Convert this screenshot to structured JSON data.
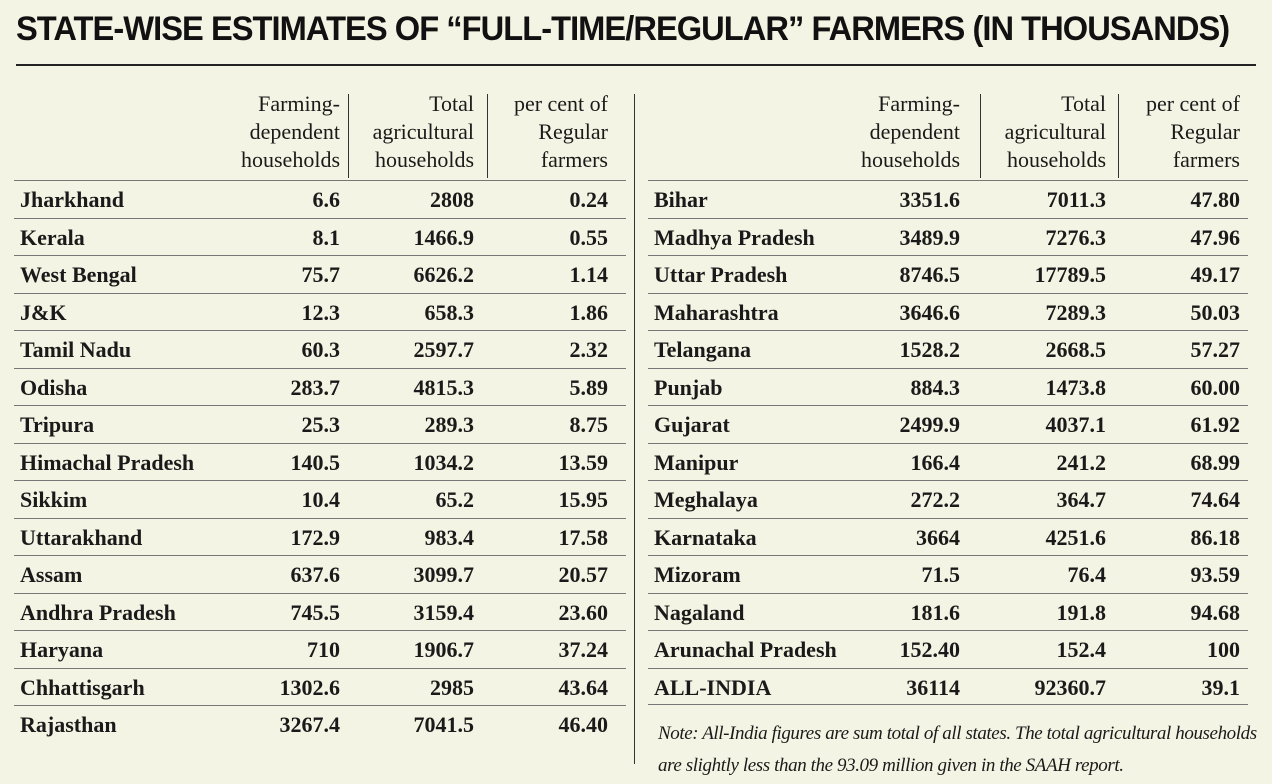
{
  "title": "STATE-WISE ESTIMATES OF “FULL-TIME/REGULAR” FARMERS (IN THOUSANDS)",
  "columns": [
    "Farming-\ndependent\nhouseholds",
    "Total\nagricultural\nhouseholds",
    "per cent of\nRegular\nfarmers"
  ],
  "left_rows": [
    {
      "state": "Jharkhand",
      "farming": "6.6",
      "total": "2808",
      "percent": "0.24"
    },
    {
      "state": "Kerala",
      "farming": "8.1",
      "total": "1466.9",
      "percent": "0.55"
    },
    {
      "state": "West Bengal",
      "farming": "75.7",
      "total": "6626.2",
      "percent": "1.14"
    },
    {
      "state": "J&K",
      "farming": "12.3",
      "total": "658.3",
      "percent": "1.86"
    },
    {
      "state": "Tamil Nadu",
      "farming": "60.3",
      "total": "2597.7",
      "percent": "2.32"
    },
    {
      "state": "Odisha",
      "farming": "283.7",
      "total": "4815.3",
      "percent": "5.89"
    },
    {
      "state": "Tripura",
      "farming": "25.3",
      "total": "289.3",
      "percent": "8.75"
    },
    {
      "state": "Himachal Pradesh",
      "farming": "140.5",
      "total": "1034.2",
      "percent": "13.59"
    },
    {
      "state": "Sikkim",
      "farming": "10.4",
      "total": "65.2",
      "percent": "15.95"
    },
    {
      "state": "Uttarakhand",
      "farming": "172.9",
      "total": "983.4",
      "percent": "17.58"
    },
    {
      "state": "Assam",
      "farming": "637.6",
      "total": "3099.7",
      "percent": "20.57"
    },
    {
      "state": "Andhra Pradesh",
      "farming": "745.5",
      "total": "3159.4",
      "percent": "23.60"
    },
    {
      "state": "Haryana",
      "farming": "710",
      "total": "1906.7",
      "percent": "37.24"
    },
    {
      "state": "Chhattisgarh",
      "farming": "1302.6",
      "total": "2985",
      "percent": "43.64"
    },
    {
      "state": "Rajasthan",
      "farming": "3267.4",
      "total": "7041.5",
      "percent": "46.40"
    }
  ],
  "right_rows": [
    {
      "state": "Bihar",
      "farming": "3351.6",
      "total": "7011.3",
      "percent": "47.80"
    },
    {
      "state": "Madhya Pradesh",
      "farming": "3489.9",
      "total": "7276.3",
      "percent": "47.96"
    },
    {
      "state": "Uttar Pradesh",
      "farming": "8746.5",
      "total": "17789.5",
      "percent": "49.17"
    },
    {
      "state": "Maharashtra",
      "farming": "3646.6",
      "total": "7289.3",
      "percent": "50.03"
    },
    {
      "state": "Telangana",
      "farming": "1528.2",
      "total": "2668.5",
      "percent": "57.27"
    },
    {
      "state": "Punjab",
      "farming": "884.3",
      "total": "1473.8",
      "percent": "60.00"
    },
    {
      "state": "Gujarat",
      "farming": "2499.9",
      "total": "4037.1",
      "percent": "61.92"
    },
    {
      "state": "Manipur",
      "farming": "166.4",
      "total": "241.2",
      "percent": "68.99"
    },
    {
      "state": "Meghalaya",
      "farming": "272.2",
      "total": "364.7",
      "percent": "74.64"
    },
    {
      "state": "Karnataka",
      "farming": "3664",
      "total": "4251.6",
      "percent": "86.18"
    },
    {
      "state": "Mizoram",
      "farming": "71.5",
      "total": "76.4",
      "percent": "93.59"
    },
    {
      "state": "Nagaland",
      "farming": "181.6",
      "total": "191.8",
      "percent": "94.68"
    },
    {
      "state": "Arunachal Pradesh",
      "farming": "152.40",
      "total": "152.4",
      "percent": "100"
    },
    {
      "state": "ALL-INDIA",
      "farming": "36114",
      "total": "92360.7",
      "percent": "39.1"
    }
  ],
  "note": "Note: All-India figures are sum total of all states. The total agricultural households are slightly less than the 93.09 million given in the SAAH report."
}
